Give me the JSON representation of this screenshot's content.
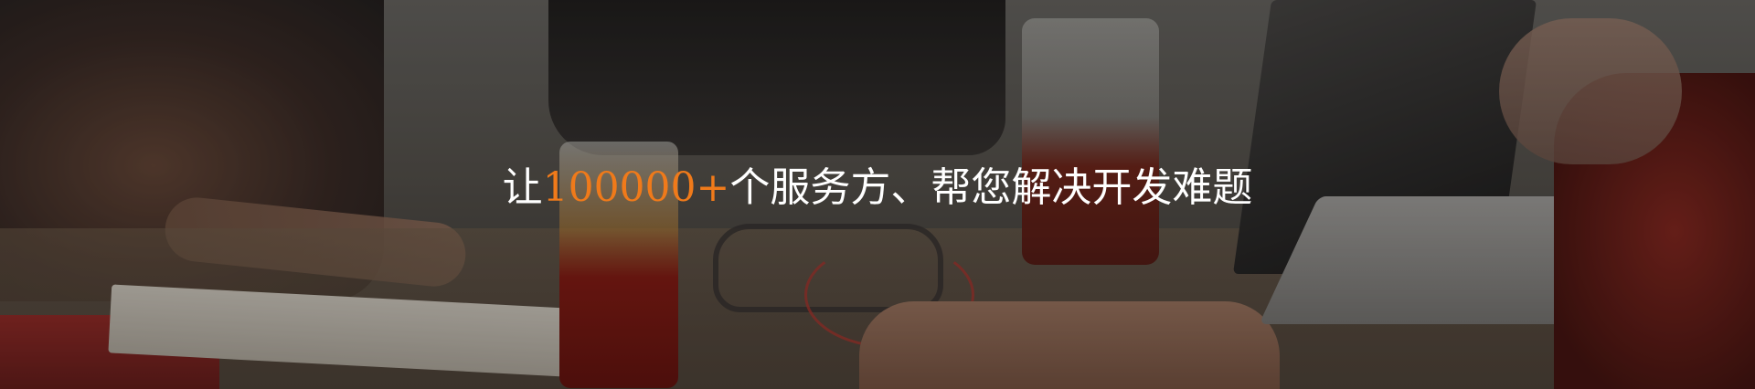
{
  "banner": {
    "headline_prefix": "让",
    "headline_highlight": "100000+",
    "headline_suffix": "个服务方、帮您解决开发难题"
  },
  "colors": {
    "headline_text": "#ffffff",
    "highlight_text": "#f07a1a"
  }
}
